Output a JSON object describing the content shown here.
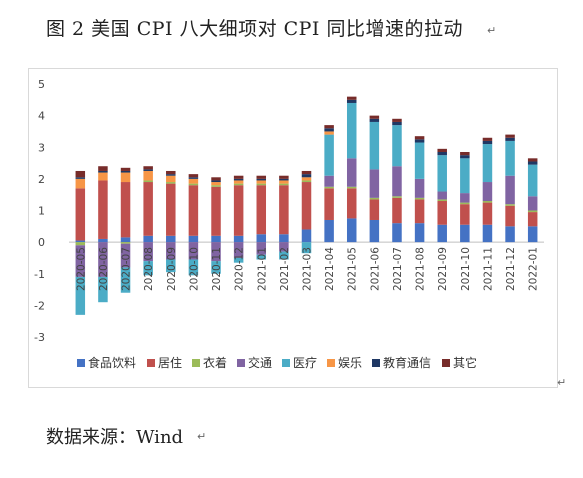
{
  "title": "图 2 美国 CPI 八大细项对 CPI 同比增速的拉动",
  "source": "数据来源：Wind",
  "chart_data": {
    "type": "bar",
    "stacked": true,
    "title": "",
    "xlabel": "",
    "ylabel": "",
    "ylim": [
      -3,
      5
    ],
    "yticks": [
      5,
      4,
      3,
      2,
      1,
      0,
      -1,
      -2,
      -3
    ],
    "grid": false,
    "legend_position": "bottom",
    "categories": [
      "2020-05",
      "2020-06",
      "2020-07",
      "2020-08",
      "2020-09",
      "2020-10",
      "2020-11",
      "2020-12",
      "2021-01",
      "2021-02",
      "2021-03",
      "2021-04",
      "2021-05",
      "2021-06",
      "2021-07",
      "2021-08",
      "2021-09",
      "2021-10",
      "2021-11",
      "2021-12",
      "2022-01"
    ],
    "series": [
      {
        "name": "食品饮料",
        "color": "#4472C4",
        "values": [
          0.05,
          0.1,
          0.15,
          0.2,
          0.2,
          0.2,
          0.2,
          0.2,
          0.25,
          0.25,
          0.4,
          0.7,
          0.75,
          0.7,
          0.6,
          0.6,
          0.55,
          0.55,
          0.55,
          0.5,
          0.5
        ]
      },
      {
        "name": "居住",
        "color": "#C0504D",
        "values": [
          1.65,
          1.85,
          1.75,
          1.7,
          1.65,
          1.6,
          1.55,
          1.6,
          1.55,
          1.55,
          1.5,
          1.0,
          0.95,
          0.65,
          0.8,
          0.75,
          0.75,
          0.65,
          0.7,
          0.65,
          0.45
        ]
      },
      {
        "name": "衣着",
        "color": "#9BBB59",
        "values": [
          -0.1,
          0.0,
          -0.05,
          0.05,
          0.05,
          0.05,
          0.05,
          0.05,
          0.05,
          0.05,
          0.05,
          0.05,
          0.05,
          0.05,
          0.05,
          0.05,
          0.05,
          0.05,
          0.05,
          0.05,
          0.05
        ]
      },
      {
        "name": "交通",
        "color": "#8064A2",
        "values": [
          -1.0,
          -1.1,
          -0.75,
          -0.6,
          -0.55,
          -0.55,
          -0.6,
          -0.5,
          -0.4,
          -0.3,
          0.0,
          0.35,
          0.9,
          0.9,
          0.95,
          0.6,
          0.25,
          0.3,
          0.6,
          0.9,
          0.45
        ]
      },
      {
        "name": "医疗",
        "color": "#4BACC6",
        "values": [
          -1.2,
          -0.8,
          -0.8,
          -0.45,
          -0.4,
          -0.5,
          -0.4,
          -0.15,
          -0.15,
          -0.25,
          -0.35,
          1.3,
          1.75,
          1.5,
          1.3,
          1.15,
          1.15,
          1.1,
          1.2,
          1.1,
          1.0
        ]
      },
      {
        "name": "娱乐",
        "color": "#F79646",
        "values": [
          0.3,
          0.25,
          0.3,
          0.3,
          0.2,
          0.15,
          0.1,
          0.1,
          0.1,
          0.1,
          0.1,
          0.1,
          0.0,
          0.0,
          0.0,
          0.0,
          0.0,
          0.0,
          0.0,
          0.0,
          0.0
        ]
      },
      {
        "name": "教育通信",
        "color": "#1F3864",
        "values": [
          0.05,
          0.05,
          0.05,
          0.05,
          0.05,
          0.05,
          0.05,
          0.05,
          0.05,
          0.05,
          0.1,
          0.1,
          0.1,
          0.1,
          0.1,
          0.1,
          0.1,
          0.1,
          0.1,
          0.1,
          0.1
        ]
      },
      {
        "name": "其它",
        "color": "#772C2A",
        "values": [
          0.2,
          0.15,
          0.1,
          0.1,
          0.1,
          0.1,
          0.1,
          0.1,
          0.1,
          0.1,
          0.1,
          0.1,
          0.1,
          0.1,
          0.1,
          0.1,
          0.1,
          0.1,
          0.1,
          0.1,
          0.1
        ]
      }
    ]
  }
}
